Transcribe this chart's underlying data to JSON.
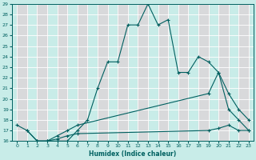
{
  "xlabel": "Humidex (Indice chaleur)",
  "bg_color": "#c8ece8",
  "grid_color": "#ffffff",
  "line_color": "#006060",
  "xlim": [
    -0.5,
    23.5
  ],
  "ylim": [
    16,
    29
  ],
  "yticks": [
    16,
    17,
    18,
    19,
    20,
    21,
    22,
    23,
    24,
    25,
    26,
    27,
    28,
    29
  ],
  "xticks": [
    0,
    1,
    2,
    3,
    4,
    5,
    6,
    7,
    8,
    9,
    10,
    11,
    12,
    13,
    14,
    15,
    16,
    17,
    18,
    19,
    20,
    21,
    22,
    23
  ],
  "series": [
    {
      "x": [
        0,
        1,
        2,
        3,
        4,
        5,
        6,
        7,
        8,
        9,
        10,
        11,
        12,
        13,
        14,
        15,
        16,
        17,
        18,
        19,
        20,
        21,
        22,
        23
      ],
      "y": [
        17.5,
        17.0,
        16.0,
        16.0,
        16.0,
        16.0,
        17.0,
        18.0,
        21.0,
        23.5,
        23.5,
        27.0,
        27.0,
        29.0,
        27.0,
        27.5,
        22.5,
        22.5,
        24.0,
        23.5,
        22.5,
        20.5,
        19.0,
        18.0
      ]
    },
    {
      "x": [
        1,
        2,
        3,
        4,
        5,
        6,
        19,
        20,
        21,
        22,
        23
      ],
      "y": [
        17.0,
        16.0,
        16.0,
        16.5,
        17.0,
        17.5,
        20.5,
        22.5,
        19.0,
        18.0,
        17.0
      ]
    },
    {
      "x": [
        2,
        3,
        4,
        5,
        6,
        19,
        20,
        21,
        22,
        23
      ],
      "y": [
        16.0,
        16.0,
        16.2,
        16.5,
        16.7,
        17.0,
        17.2,
        17.5,
        17.0,
        17.0
      ]
    }
  ]
}
